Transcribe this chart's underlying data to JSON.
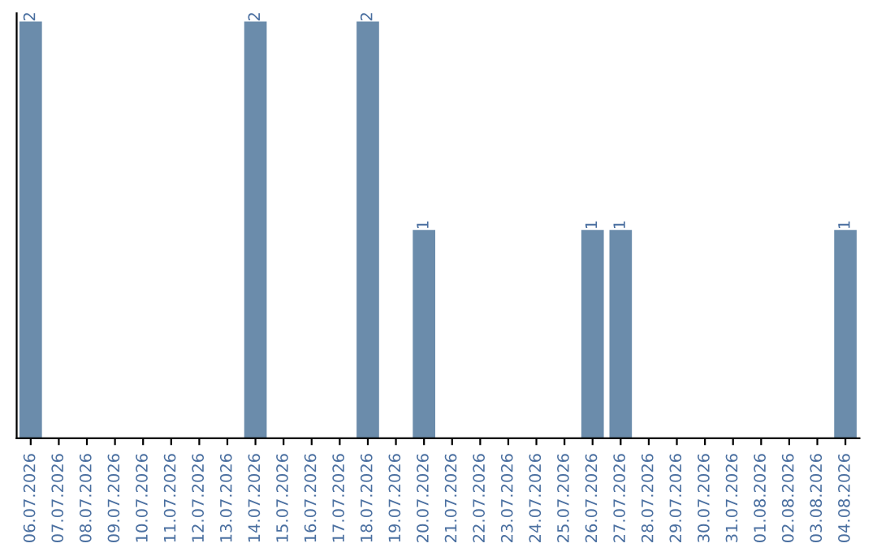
{
  "chart_data": {
    "type": "bar",
    "categories": [
      "06.07.2026",
      "07.07.2026",
      "08.07.2026",
      "09.07.2026",
      "10.07.2026",
      "11.07.2026",
      "12.07.2026",
      "13.07.2026",
      "14.07.2026",
      "15.07.2026",
      "16.07.2026",
      "17.07.2026",
      "18.07.2026",
      "19.07.2026",
      "20.07.2026",
      "21.07.2026",
      "22.07.2026",
      "23.07.2026",
      "24.07.2026",
      "25.07.2026",
      "26.07.2026",
      "27.07.2026",
      "28.07.2026",
      "29.07.2026",
      "30.07.2026",
      "31.07.2026",
      "01.08.2026",
      "02.08.2026",
      "03.08.2026",
      "04.08.2026"
    ],
    "values": [
      2,
      0,
      0,
      0,
      0,
      0,
      0,
      0,
      2,
      0,
      0,
      0,
      2,
      0,
      1,
      0,
      0,
      0,
      0,
      0,
      1,
      1,
      0,
      0,
      0,
      0,
      0,
      0,
      0,
      1
    ],
    "color": "#6b8cab",
    "value_labels": [
      "2",
      null,
      null,
      null,
      null,
      null,
      null,
      null,
      "2",
      null,
      null,
      null,
      "2",
      null,
      "1",
      null,
      null,
      null,
      null,
      null,
      "1",
      "1",
      null,
      null,
      null,
      null,
      null,
      null,
      null,
      "1"
    ],
    "tick_labels": "x",
    "grid": false,
    "legend": false
  }
}
